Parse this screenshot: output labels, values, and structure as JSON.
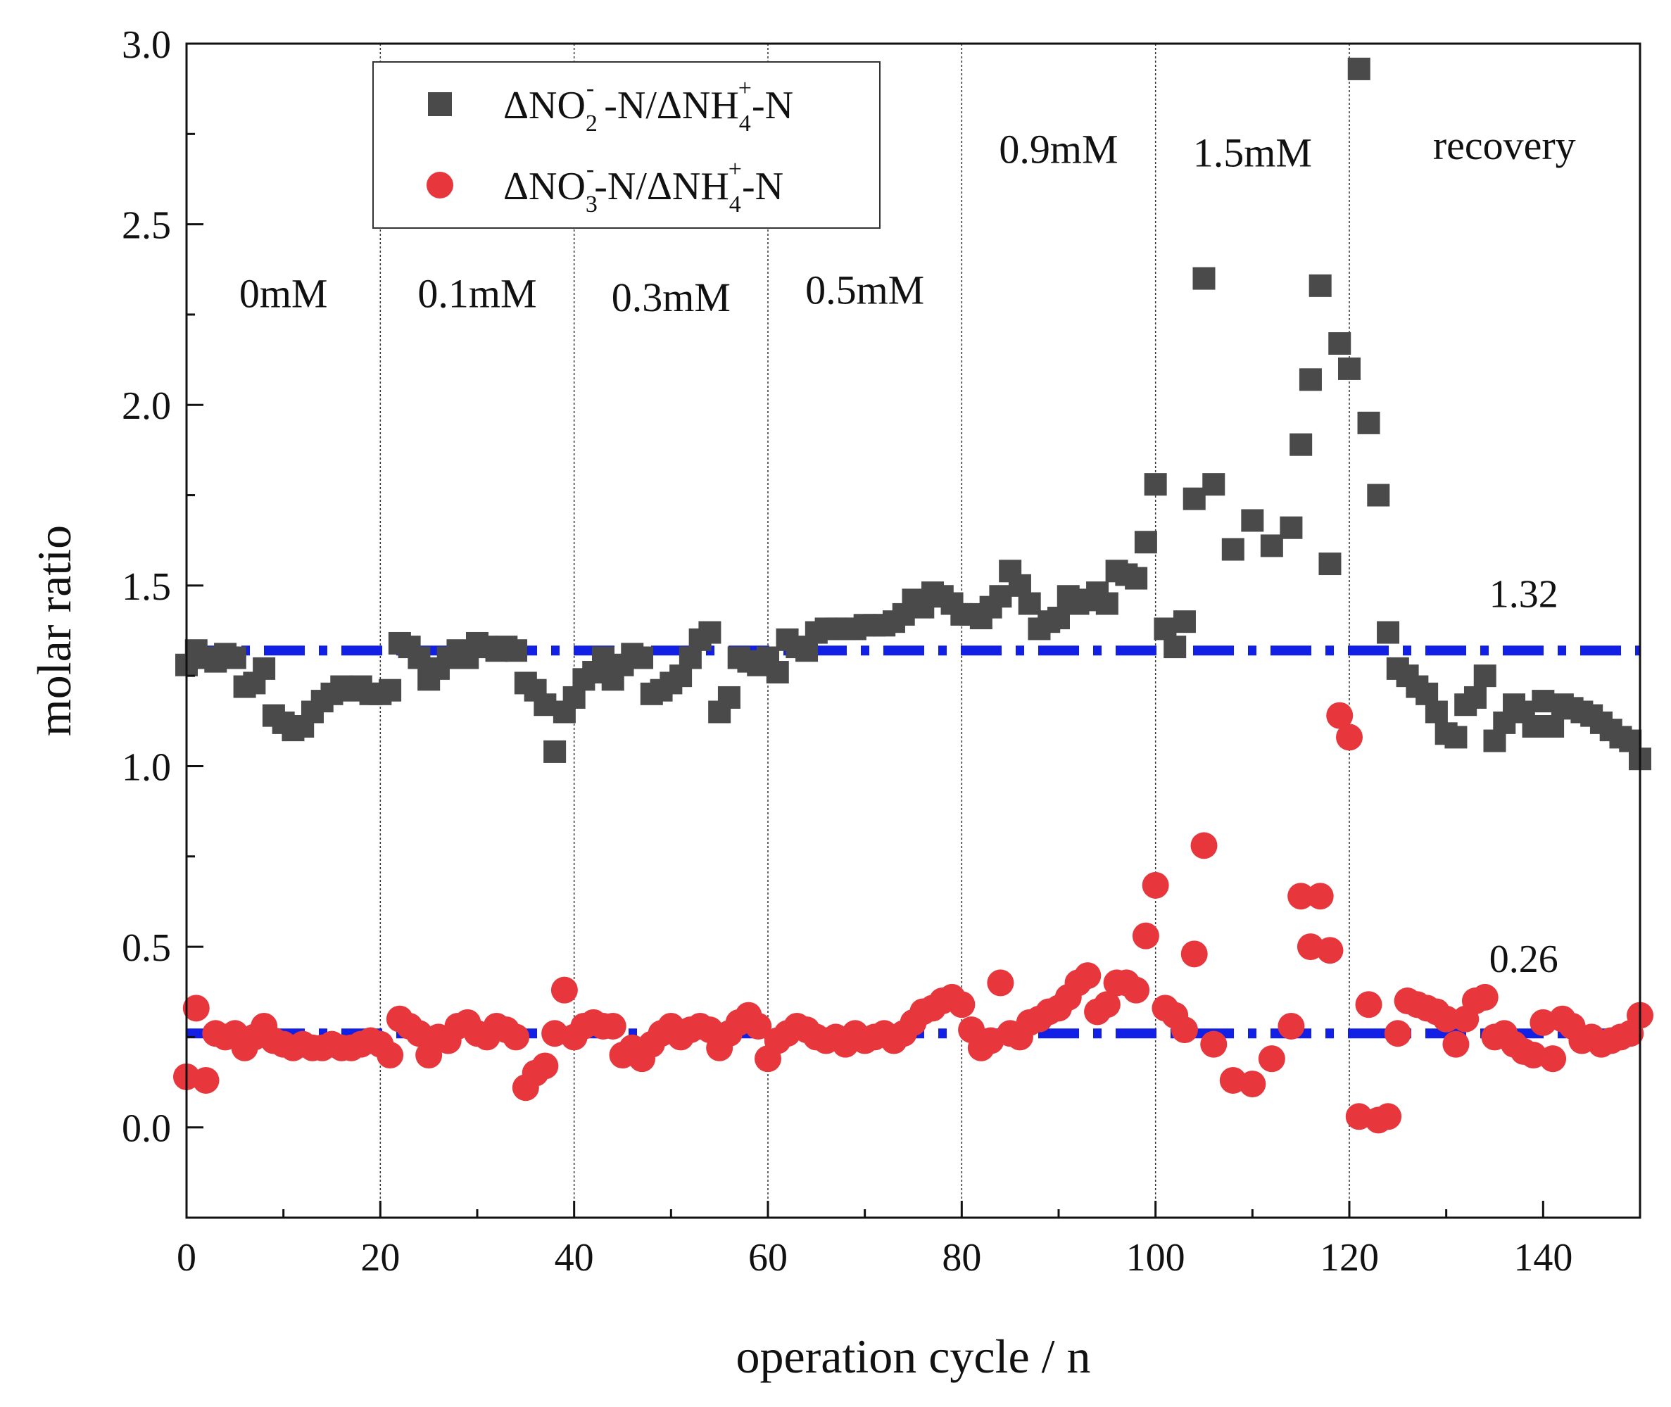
{
  "chart_data": {
    "type": "scatter",
    "xlabel": "operation cycle / n",
    "ylabel": "molar ratio",
    "xlim": [
      0,
      150
    ],
    "ylim": [
      -0.25,
      3.0
    ],
    "xticks": [
      0,
      20,
      40,
      60,
      80,
      100,
      120,
      140
    ],
    "yticks": [
      0.0,
      0.5,
      1.0,
      1.5,
      2.0,
      2.5,
      3.0
    ],
    "xtick_labels": [
      "0",
      "20",
      "40",
      "60",
      "80",
      "100",
      "120",
      "140"
    ],
    "ytick_labels": [
      "0.0",
      "0.5",
      "1.0",
      "1.5",
      "2.0",
      "2.5",
      "3.0"
    ],
    "phase_boundaries": [
      20,
      40,
      60,
      80,
      100,
      120
    ],
    "phases": [
      {
        "label": "0mM",
        "x": 10,
        "y": 2.27
      },
      {
        "label": "0.1mM",
        "x": 30,
        "y": 2.27
      },
      {
        "label": "0.3mM",
        "x": 50,
        "y": 2.26
      },
      {
        "label": "0.5mM",
        "x": 70,
        "y": 2.28
      },
      {
        "label": "0.9mM",
        "x": 90,
        "y": 2.67
      },
      {
        "label": "1.5mM",
        "x": 110,
        "y": 2.66
      },
      {
        "label": "recovery",
        "x": 136,
        "y": 2.68
      }
    ],
    "reference_lines": [
      {
        "y": 1.32,
        "label": "1.32",
        "label_x": 138,
        "label_y": 1.44
      },
      {
        "y": 0.26,
        "label": "0.26",
        "label_x": 138,
        "label_y": 0.43
      }
    ],
    "legend": {
      "placement": "top-left",
      "entries": [
        {
          "pre": "ΔNO",
          "sub": "2",
          "sup": "-",
          "mid": " -N/ΔNH",
          "sub2": "4",
          "sup2": "+",
          "post": "-N"
        },
        {
          "pre": "ΔNO",
          "sub": "3",
          "sup": "-",
          "mid": "-N/ΔNH",
          "sub2": "4",
          "sup2": "+",
          "post": "-N"
        }
      ]
    },
    "series": [
      {
        "name": "ΔNO2- -N/ΔNH4+-N",
        "marker": "square",
        "color": "#4a4a4a",
        "x": [
          0,
          1,
          2,
          3,
          4,
          5,
          6,
          7,
          8,
          9,
          10,
          11,
          12,
          13,
          14,
          15,
          16,
          17,
          18,
          19,
          20,
          21,
          22,
          23,
          24,
          25,
          26,
          27,
          28,
          29,
          30,
          31,
          32,
          33,
          34,
          35,
          36,
          37,
          38,
          39,
          40,
          41,
          42,
          43,
          44,
          45,
          46,
          47,
          48,
          49,
          50,
          51,
          52,
          53,
          54,
          55,
          56,
          57,
          58,
          59,
          60,
          61,
          62,
          63,
          64,
          65,
          66,
          67,
          68,
          69,
          70,
          71,
          72,
          73,
          74,
          75,
          76,
          77,
          78,
          79,
          80,
          81,
          82,
          83,
          84,
          85,
          86,
          87,
          88,
          89,
          90,
          91,
          92,
          93,
          94,
          95,
          96,
          97,
          98,
          99,
          100,
          101,
          102,
          103,
          104,
          105,
          106,
          108,
          110,
          112,
          114,
          115,
          116,
          117,
          118,
          119,
          120,
          121,
          122,
          123,
          124,
          125,
          126,
          127,
          128,
          129,
          130,
          131,
          132,
          133,
          134,
          135,
          136,
          137,
          138,
          139,
          140,
          141,
          142,
          143,
          144,
          145,
          146,
          147,
          148,
          149,
          150
        ],
        "values": [
          1.28,
          1.32,
          1.3,
          1.29,
          1.31,
          1.3,
          1.22,
          1.23,
          1.27,
          1.14,
          1.12,
          1.1,
          1.11,
          1.15,
          1.18,
          1.2,
          1.22,
          1.21,
          1.22,
          1.2,
          1.2,
          1.21,
          1.34,
          1.33,
          1.3,
          1.24,
          1.27,
          1.3,
          1.32,
          1.3,
          1.34,
          1.33,
          1.32,
          1.33,
          1.32,
          1.23,
          1.21,
          1.17,
          1.04,
          1.15,
          1.19,
          1.24,
          1.26,
          1.3,
          1.24,
          1.28,
          1.31,
          1.3,
          1.2,
          1.21,
          1.23,
          1.25,
          1.3,
          1.35,
          1.37,
          1.15,
          1.19,
          1.3,
          1.29,
          1.28,
          1.3,
          1.26,
          1.35,
          1.33,
          1.32,
          1.37,
          1.38,
          1.38,
          1.38,
          1.38,
          1.39,
          1.39,
          1.39,
          1.4,
          1.42,
          1.46,
          1.44,
          1.48,
          1.47,
          1.45,
          1.42,
          1.42,
          1.41,
          1.44,
          1.47,
          1.54,
          1.5,
          1.45,
          1.38,
          1.4,
          1.41,
          1.47,
          1.45,
          1.46,
          1.48,
          1.45,
          1.54,
          1.53,
          1.52,
          1.62,
          1.78,
          1.38,
          1.33,
          1.4,
          1.74,
          2.35,
          1.78,
          1.6,
          1.68,
          1.61,
          1.66,
          1.89,
          2.07,
          2.33,
          1.56,
          2.17,
          2.1,
          2.93,
          1.95,
          1.75,
          1.37,
          1.27,
          1.25,
          1.22,
          1.2,
          1.15,
          1.09,
          1.08,
          1.17,
          1.19,
          1.25,
          1.07,
          1.12,
          1.17,
          1.15,
          1.11,
          1.18,
          1.11,
          1.17,
          1.16,
          1.15,
          1.14,
          1.12,
          1.1,
          1.08,
          1.07,
          1.02
        ]
      },
      {
        "name": "ΔNO3- -N/ΔNH4+-N",
        "marker": "circle",
        "color": "#e8373c",
        "x": [
          0,
          1,
          2,
          3,
          4,
          5,
          6,
          7,
          8,
          9,
          10,
          11,
          12,
          13,
          14,
          15,
          16,
          17,
          18,
          19,
          20,
          21,
          22,
          23,
          24,
          25,
          26,
          27,
          28,
          29,
          30,
          31,
          32,
          33,
          34,
          35,
          36,
          37,
          38,
          39,
          40,
          41,
          42,
          43,
          44,
          45,
          46,
          47,
          48,
          49,
          50,
          51,
          52,
          53,
          54,
          55,
          56,
          57,
          58,
          59,
          60,
          61,
          62,
          63,
          64,
          65,
          66,
          67,
          68,
          69,
          70,
          71,
          72,
          73,
          74,
          75,
          76,
          77,
          78,
          79,
          80,
          81,
          82,
          83,
          84,
          85,
          86,
          87,
          88,
          89,
          90,
          91,
          92,
          93,
          94,
          95,
          96,
          97,
          98,
          99,
          100,
          101,
          102,
          103,
          104,
          105,
          106,
          108,
          110,
          112,
          114,
          115,
          116,
          117,
          118,
          119,
          120,
          121,
          122,
          123,
          124,
          125,
          126,
          127,
          128,
          129,
          130,
          131,
          132,
          133,
          134,
          135,
          136,
          137,
          138,
          139,
          140,
          141,
          142,
          143,
          144,
          145,
          146,
          147,
          148,
          149,
          150
        ],
        "values": [
          0.14,
          0.33,
          0.13,
          0.26,
          0.25,
          0.26,
          0.22,
          0.25,
          0.28,
          0.24,
          0.23,
          0.22,
          0.23,
          0.22,
          0.22,
          0.23,
          0.22,
          0.22,
          0.23,
          0.24,
          0.23,
          0.2,
          0.3,
          0.28,
          0.26,
          0.2,
          0.25,
          0.24,
          0.28,
          0.29,
          0.26,
          0.25,
          0.28,
          0.27,
          0.25,
          0.11,
          0.15,
          0.17,
          0.26,
          0.38,
          0.25,
          0.28,
          0.29,
          0.28,
          0.28,
          0.2,
          0.22,
          0.19,
          0.23,
          0.26,
          0.28,
          0.25,
          0.27,
          0.28,
          0.27,
          0.22,
          0.26,
          0.29,
          0.31,
          0.28,
          0.19,
          0.24,
          0.26,
          0.28,
          0.27,
          0.25,
          0.24,
          0.25,
          0.23,
          0.26,
          0.24,
          0.25,
          0.26,
          0.24,
          0.26,
          0.29,
          0.32,
          0.33,
          0.35,
          0.36,
          0.34,
          0.27,
          0.22,
          0.24,
          0.4,
          0.26,
          0.25,
          0.29,
          0.3,
          0.32,
          0.33,
          0.36,
          0.4,
          0.42,
          0.32,
          0.34,
          0.4,
          0.4,
          0.38,
          0.53,
          0.67,
          0.33,
          0.31,
          0.27,
          0.48,
          0.78,
          0.23,
          0.13,
          0.12,
          0.19,
          0.28,
          0.64,
          0.5,
          0.64,
          0.49,
          1.14,
          1.08,
          0.03,
          0.34,
          0.02,
          0.03,
          0.26,
          0.35,
          0.34,
          0.33,
          0.32,
          0.3,
          0.23,
          0.3,
          0.35,
          0.36,
          0.25,
          0.26,
          0.23,
          0.21,
          0.2,
          0.29,
          0.19,
          0.3,
          0.28,
          0.24,
          0.25,
          0.23,
          0.24,
          0.25,
          0.26,
          0.31
        ]
      }
    ]
  },
  "colors": {
    "series_square": "#4a4a4a",
    "series_circle": "#e8373c",
    "reference_line": "#1220e6",
    "axis": "#111111",
    "phase_line": "#333333"
  }
}
